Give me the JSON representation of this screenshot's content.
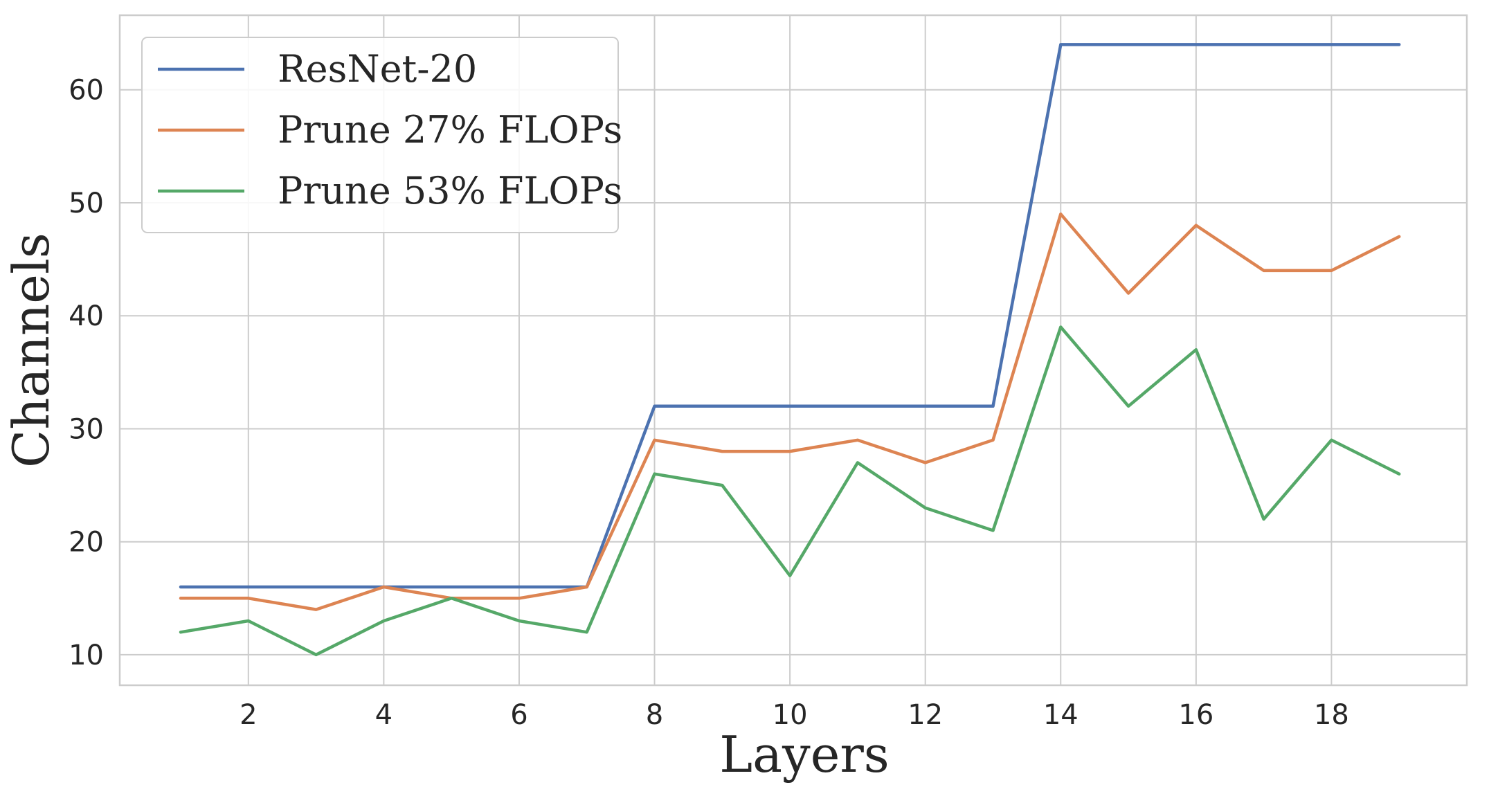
{
  "chart_data": {
    "type": "line",
    "xlabel": "Layers",
    "ylabel": "Channels",
    "xlim": [
      0.1,
      20
    ],
    "ylim": [
      7.3,
      66.6
    ],
    "x_ticks": [
      2,
      4,
      6,
      8,
      10,
      12,
      14,
      16,
      18
    ],
    "y_ticks": [
      10,
      20,
      30,
      40,
      50,
      60
    ],
    "grid": true,
    "legend_position": "top-left",
    "x": [
      1,
      2,
      3,
      4,
      5,
      6,
      7,
      8,
      9,
      10,
      11,
      12,
      13,
      14,
      15,
      16,
      17,
      18,
      19
    ],
    "series": [
      {
        "name": "ResNet-20",
        "color": "#4c72b0",
        "values": [
          16,
          16,
          16,
          16,
          16,
          16,
          16,
          32,
          32,
          32,
          32,
          32,
          32,
          64,
          64,
          64,
          64,
          64,
          64
        ]
      },
      {
        "name": "Prune 27% FLOPs",
        "color": "#dd8452",
        "values": [
          15,
          15,
          14,
          16,
          15,
          15,
          16,
          29,
          28,
          28,
          29,
          27,
          29,
          49,
          42,
          48,
          44,
          44,
          47
        ]
      },
      {
        "name": "Prune 53% FLOPs",
        "color": "#55a868",
        "values": [
          12,
          13,
          10,
          13,
          15,
          13,
          12,
          26,
          25,
          17,
          27,
          23,
          21,
          39,
          32,
          37,
          22,
          29,
          26
        ]
      }
    ]
  }
}
